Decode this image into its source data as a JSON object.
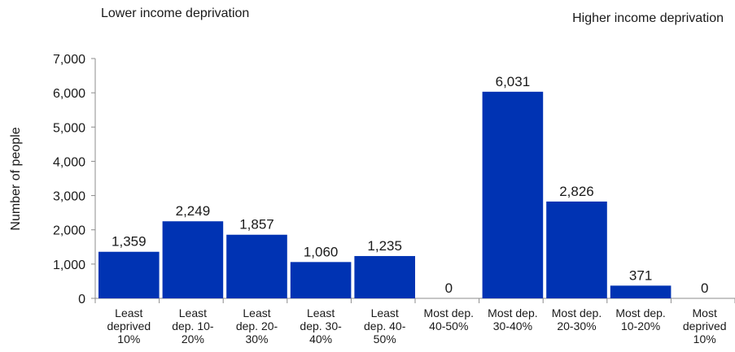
{
  "chart_data": {
    "type": "bar",
    "categories": [
      [
        "Least",
        "deprived",
        "10%"
      ],
      [
        "Least",
        "dep. 10-",
        "20%"
      ],
      [
        "Least",
        "dep. 20-",
        "30%"
      ],
      [
        "Least",
        "dep. 30-",
        "40%"
      ],
      [
        "Least",
        "dep. 40-",
        "50%"
      ],
      [
        "Most dep.",
        "40-50%"
      ],
      [
        "Most dep.",
        "30-40%"
      ],
      [
        "Most dep.",
        "20-30%"
      ],
      [
        "Most dep.",
        "10-20%"
      ],
      [
        "Most",
        "deprived",
        "10%"
      ]
    ],
    "values": [
      1359,
      2249,
      1857,
      1060,
      1235,
      0,
      6031,
      2826,
      371,
      0
    ],
    "value_labels": [
      "1,359",
      "2,249",
      "1,857",
      "1,060",
      "1,235",
      "0",
      "6,031",
      "2,826",
      "371",
      "0"
    ],
    "ylabel": "Number of people",
    "ylim": [
      0,
      7000
    ],
    "yticks": [
      0,
      1000,
      2000,
      3000,
      4000,
      5000,
      6000,
      7000
    ],
    "ytick_labels": [
      "0",
      "1,000",
      "2,000",
      "3,000",
      "4,000",
      "5,000",
      "6,000",
      "7,000"
    ],
    "annotations": {
      "left": "Lower income deprivation",
      "right": "Higher income deprivation"
    },
    "grid": false,
    "legend": "none",
    "bar_color": "#0033b3"
  }
}
